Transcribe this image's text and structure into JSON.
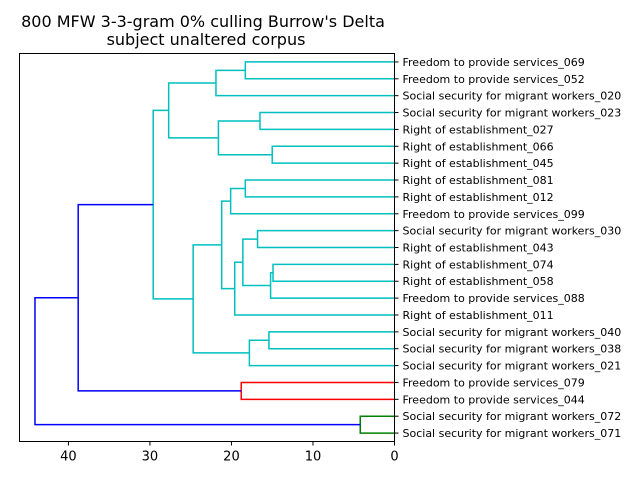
{
  "chart_data": {
    "type": "dendrogram",
    "title": "800 MFW 3-3-gram 0% culling Burrow's Delta",
    "subtitle": "subject unaltered corpus",
    "xlabel": "",
    "ylabel": "",
    "xlim": [
      46,
      0
    ],
    "x_ticks": [
      40,
      30,
      20,
      10,
      0
    ],
    "x_tick_labels": [
      "40",
      "30",
      "20",
      "10",
      "0"
    ],
    "grid": false,
    "colors": {
      "cyan": "#00bfbf",
      "blue": "#0000ff",
      "red": "#ff0000",
      "green": "#008000"
    },
    "leaves": [
      "Freedom to provide services_069",
      "Freedom to provide services_052",
      "Social security for migrant workers_020",
      "Social security for migrant workers_023",
      "Right of establishment_027",
      "Right of establishment_066",
      "Right of establishment_045",
      "Right of establishment_081",
      "Right of establishment_012",
      "Freedom to provide services_099",
      "Social security for migrant workers_030",
      "Right of establishment_043",
      "Right of establishment_074",
      "Right of establishment_058",
      "Freedom to provide services_088",
      "Right of establishment_011",
      "Social security for migrant workers_040",
      "Social security for migrant workers_038",
      "Social security for migrant workers_021",
      "Freedom to provide services_079",
      "Freedom to provide services_044",
      "Social security for migrant workers_072",
      "Social security for migrant workers_071"
    ],
    "merges": [
      {
        "id": "n1",
        "a": 0,
        "b": 1,
        "height": 18.3,
        "color": "cyan"
      },
      {
        "id": "n2",
        "a": "n1",
        "b": 2,
        "height": 21.9,
        "color": "cyan"
      },
      {
        "id": "n3",
        "a": 3,
        "b": 4,
        "height": 16.5,
        "color": "cyan"
      },
      {
        "id": "n4",
        "a": 5,
        "b": 6,
        "height": 15.0,
        "color": "cyan"
      },
      {
        "id": "n5",
        "a": "n3",
        "b": "n4",
        "height": 21.6,
        "color": "cyan"
      },
      {
        "id": "n6",
        "a": "n2",
        "b": "n5",
        "height": 27.7,
        "color": "cyan"
      },
      {
        "id": "n7",
        "a": 7,
        "b": 8,
        "height": 18.3,
        "color": "cyan"
      },
      {
        "id": "n8",
        "a": "n7",
        "b": 9,
        "height": 20.1,
        "color": "cyan"
      },
      {
        "id": "n9",
        "a": 10,
        "b": 11,
        "height": 16.8,
        "color": "cyan"
      },
      {
        "id": "n10",
        "a": 12,
        "b": 13,
        "height": 14.9,
        "color": "cyan"
      },
      {
        "id": "n11",
        "a": "n10",
        "b": 14,
        "height": 15.2,
        "color": "cyan"
      },
      {
        "id": "n12",
        "a": "n9",
        "b": "n11",
        "height": 18.6,
        "color": "cyan"
      },
      {
        "id": "n13",
        "a": "n12",
        "b": 15,
        "height": 19.6,
        "color": "cyan"
      },
      {
        "id": "n14",
        "a": "n8",
        "b": "n13",
        "height": 21.2,
        "color": "cyan"
      },
      {
        "id": "n15",
        "a": 16,
        "b": 17,
        "height": 15.4,
        "color": "cyan"
      },
      {
        "id": "n16",
        "a": "n15",
        "b": 18,
        "height": 17.8,
        "color": "cyan"
      },
      {
        "id": "n17",
        "a": "n14",
        "b": "n16",
        "height": 24.7,
        "color": "cyan"
      },
      {
        "id": "n18",
        "a": "n6",
        "b": "n17",
        "height": 29.6,
        "color": "cyan"
      },
      {
        "id": "n19",
        "a": 19,
        "b": 20,
        "height": 18.8,
        "color": "red"
      },
      {
        "id": "n20",
        "a": "n18",
        "b": "n19",
        "height": 38.8,
        "color": "blue"
      },
      {
        "id": "n21",
        "a": 21,
        "b": 22,
        "height": 4.2,
        "color": "green"
      },
      {
        "id": "n22",
        "a": "n20",
        "b": "n21",
        "height": 44.1,
        "color": "blue"
      }
    ]
  }
}
